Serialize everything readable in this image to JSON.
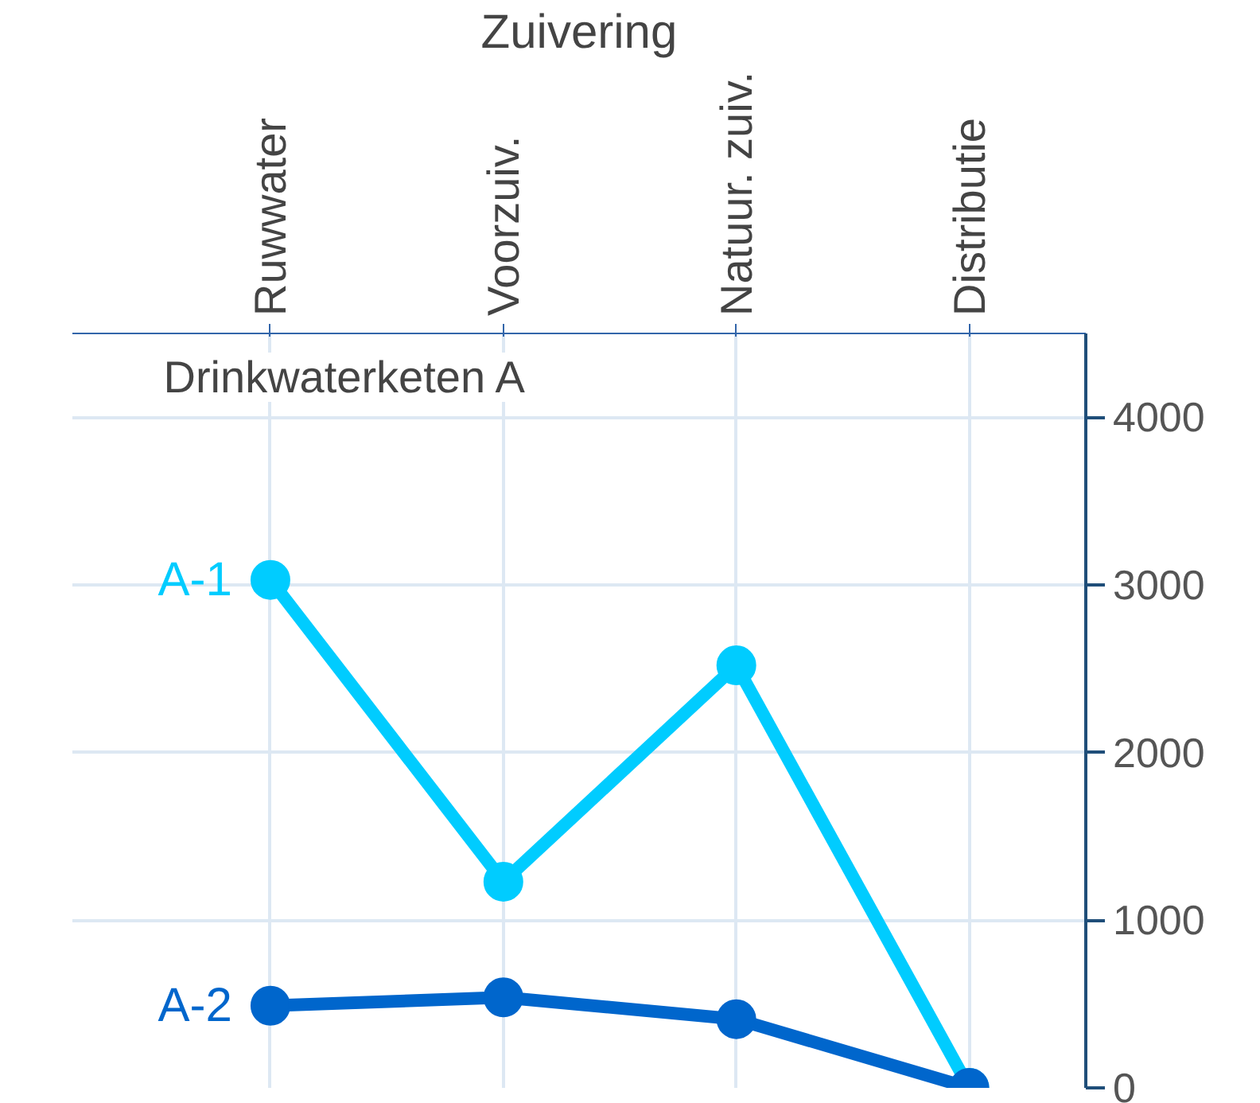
{
  "chart_data": {
    "type": "line",
    "title": "Drinkwaterketen A",
    "xlabel": "Zuivering",
    "categories": [
      "Ruwwater",
      "Voorzuiv.",
      "Natuur. zuiv.",
      "Distributie"
    ],
    "series": [
      {
        "name": "A-1",
        "color": "#00ccff",
        "values": [
          3030,
          1230,
          2520,
          0
        ]
      },
      {
        "name": "A-2",
        "color": "#0066cc",
        "values": [
          490,
          540,
          410,
          0
        ]
      }
    ],
    "ylim": [
      0,
      4500
    ],
    "yticks": [
      0,
      1000,
      2000,
      3000,
      4000
    ],
    "grid": true,
    "marker": "circle",
    "line_style": "solid"
  }
}
